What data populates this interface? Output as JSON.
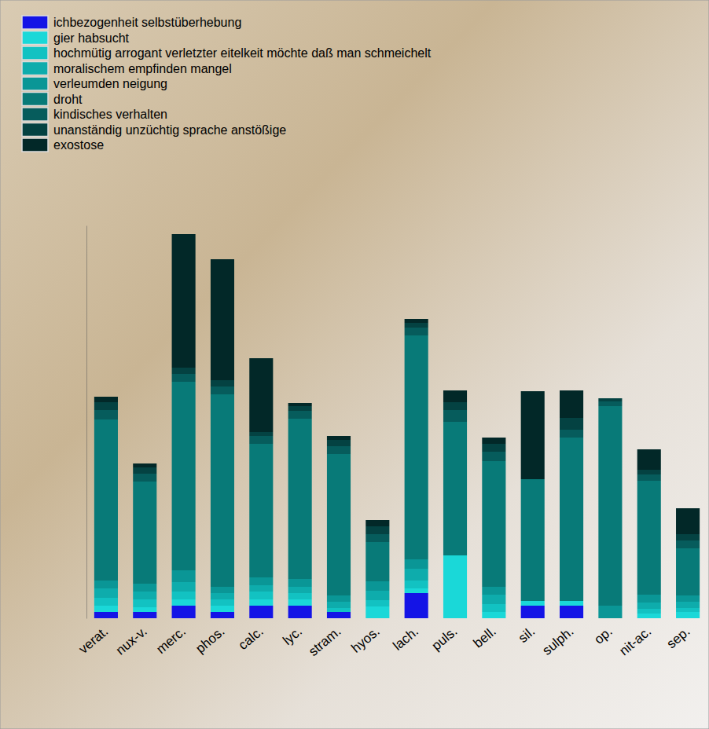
{
  "chart_data": {
    "type": "bar",
    "stacked": true,
    "tick_labels": "x",
    "legend": "top-left",
    "categories": [
      "verat.",
      "nux-v.",
      "merc.",
      "phos.",
      "calc.",
      "lyc.",
      "stram.",
      "hyos.",
      "lach.",
      "puls.",
      "bell.",
      "sil.",
      "sulph.",
      "op.",
      "nit-ac.",
      "sep."
    ],
    "ylim": [
      0,
      50
    ],
    "series": [
      {
        "name": "ichbezogenheit selbstüberhebung",
        "color": "#1414e6",
        "values": [
          0.8,
          0.8,
          1.6,
          0.8,
          1.6,
          1.6,
          0.8,
          0,
          3.2,
          0,
          0,
          1.6,
          1.6,
          0,
          0,
          0
        ]
      },
      {
        "name": "gier habsucht",
        "color": "#1ad8d8",
        "values": [
          0.8,
          0.6,
          0.8,
          0.8,
          0.8,
          0.8,
          0,
          1.5,
          0.6,
          8.0,
          0.8,
          0.6,
          0.6,
          0,
          0.6,
          0.8
        ]
      },
      {
        "name": "hochmütig arrogant verletzter eitelkeit möchte daß man schmeichelt",
        "color": "#12c2c2",
        "values": [
          1.0,
          1.0,
          1.0,
          0.8,
          1.0,
          0.8,
          0.5,
          0.8,
          1.0,
          0,
          1.0,
          0,
          0,
          0,
          0.6,
          0.5
        ]
      },
      {
        "name": "moralischem empfinden mangel",
        "color": "#0eacac",
        "values": [
          1.2,
          1.0,
          1.2,
          0.8,
          0.8,
          0.8,
          0.8,
          1.2,
          1.5,
          0,
          1.2,
          0,
          0,
          0,
          0.8,
          0.8
        ]
      },
      {
        "name": "verleumden neigung",
        "color": "#0a9696",
        "values": [
          1.0,
          1.0,
          1.5,
          0.8,
          1.0,
          1.0,
          0.8,
          1.2,
          1.2,
          0,
          1.0,
          0,
          0,
          1.6,
          1.0,
          0.8
        ]
      },
      {
        "name": "droht",
        "color": "#087a78",
        "values": [
          20.5,
          13.0,
          24.0,
          24.5,
          17.0,
          20.4,
          18.0,
          5.0,
          28.5,
          17.0,
          16.0,
          15.5,
          20.8,
          25.4,
          14.5,
          6.0
        ]
      },
      {
        "name": "kindisches verhalten",
        "color": "#065c5c",
        "values": [
          1.2,
          1.0,
          1.0,
          1.0,
          1.0,
          1.0,
          1.0,
          1.0,
          1.0,
          1.5,
          1.2,
          0,
          1.0,
          0.6,
          0.8,
          1.0
        ]
      },
      {
        "name": "unanständig unzüchtig sprache anstößige",
        "color": "#044242",
        "values": [
          1.0,
          0.8,
          0.8,
          0.8,
          0.5,
          0.6,
          0.8,
          1.0,
          0.6,
          1.0,
          1.0,
          0,
          1.5,
          0.4,
          0.6,
          0.8
        ]
      },
      {
        "name": "exostose",
        "color": "#022828",
        "values": [
          0.7,
          0.5,
          17.0,
          15.4,
          9.4,
          0.4,
          0.5,
          0.8,
          0.5,
          1.5,
          0.8,
          11.2,
          3.5,
          0,
          2.6,
          3.3
        ]
      }
    ]
  }
}
